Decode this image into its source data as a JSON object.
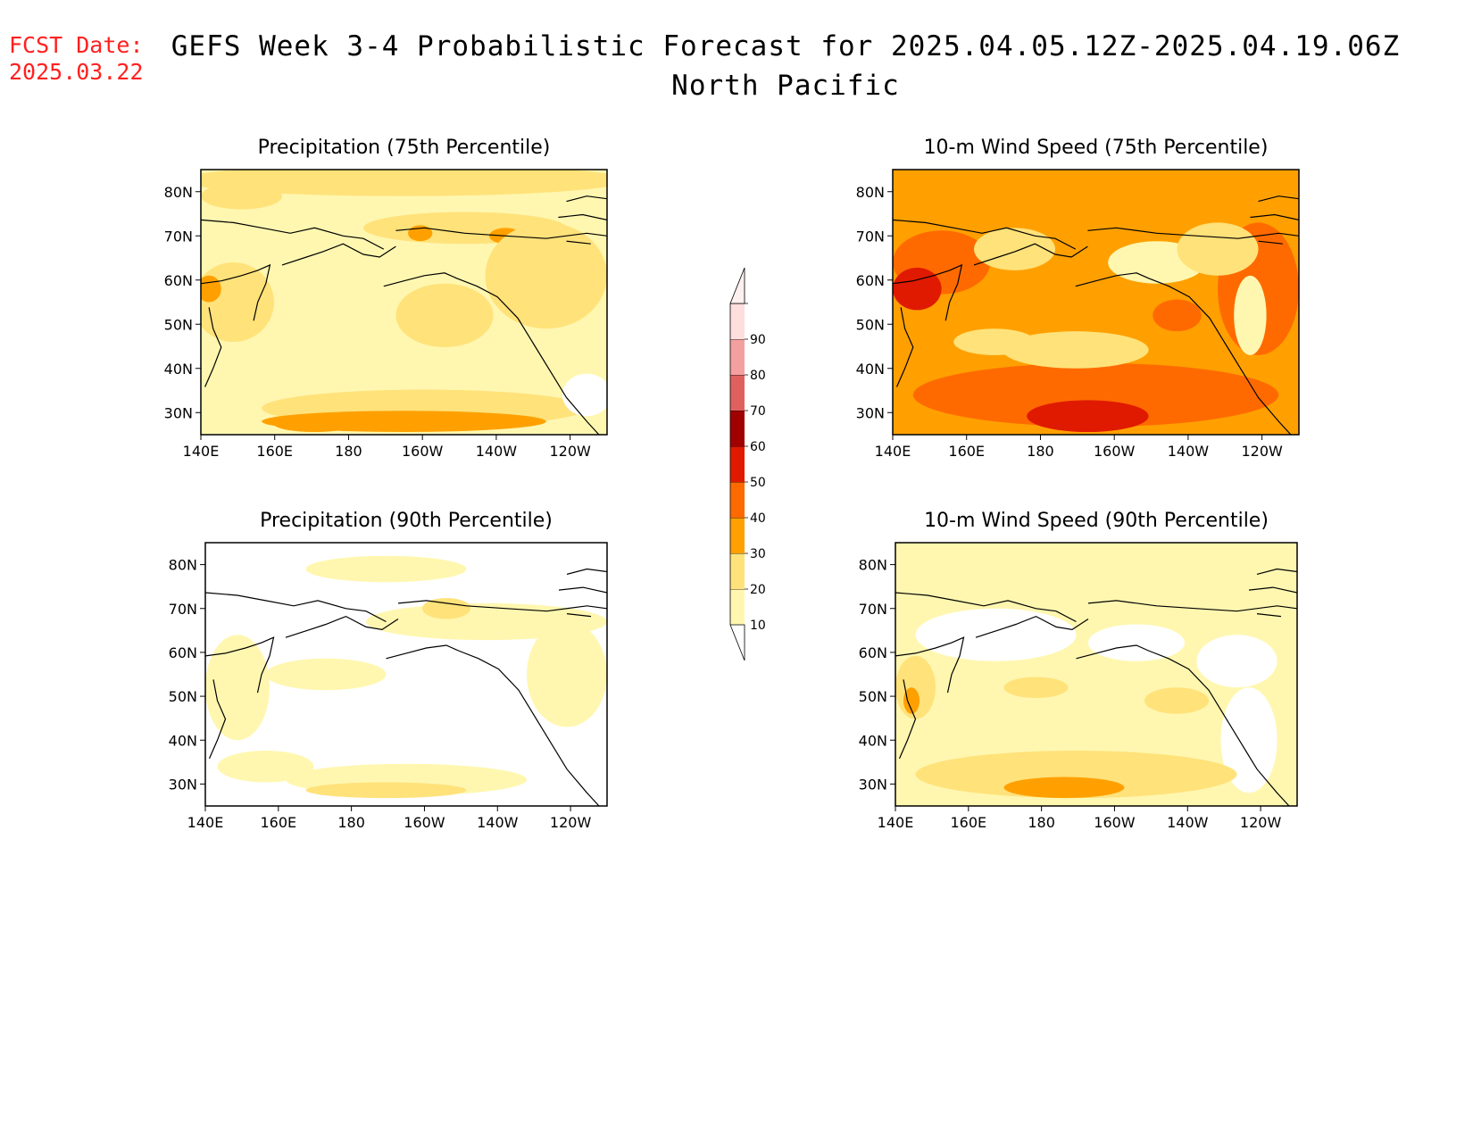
{
  "header": {
    "fcst_label": "FCST Date:",
    "fcst_date": "2025.03.22",
    "title": "GEFS Week 3-4 Probabilistic Forecast for 2025.04.05.12Z-2025.04.19.06Z",
    "subtitle": "North Pacific"
  },
  "map_axes": {
    "lon_ticks": [
      "140E",
      "160E",
      "180",
      "160W",
      "140W",
      "120W"
    ],
    "lat_ticks": [
      "80N",
      "70N",
      "60N",
      "50N",
      "40N",
      "30N"
    ],
    "lon_range": [
      140,
      250
    ],
    "lat_range": [
      25,
      85
    ]
  },
  "panels": [
    {
      "id": "precip75",
      "title": "Precipitation (75th Percentile)",
      "dominant_category": "10-20",
      "max_category": "30-40"
    },
    {
      "id": "wind75",
      "title": "10-m Wind Speed (75th Percentile)",
      "dominant_category": "30-40",
      "max_category": "50-60"
    },
    {
      "id": "precip90",
      "title": "Precipitation (90th Percentile)",
      "dominant_category": "<10",
      "max_category": "20-30"
    },
    {
      "id": "wind90",
      "title": "10-m Wind Speed (90th Percentile)",
      "dominant_category": "10-20",
      "max_category": "30-40"
    }
  ],
  "colorbar": {
    "levels": [
      "10",
      "20",
      "30",
      "40",
      "50",
      "60",
      "70",
      "80",
      "90"
    ],
    "colors": [
      "#fff7b0",
      "#ffe27a",
      "#ffa000",
      "#ff6a00",
      "#e01a00",
      "#a00000",
      "#e06060",
      "#f4a0a0",
      "#ffdede"
    ]
  }
}
